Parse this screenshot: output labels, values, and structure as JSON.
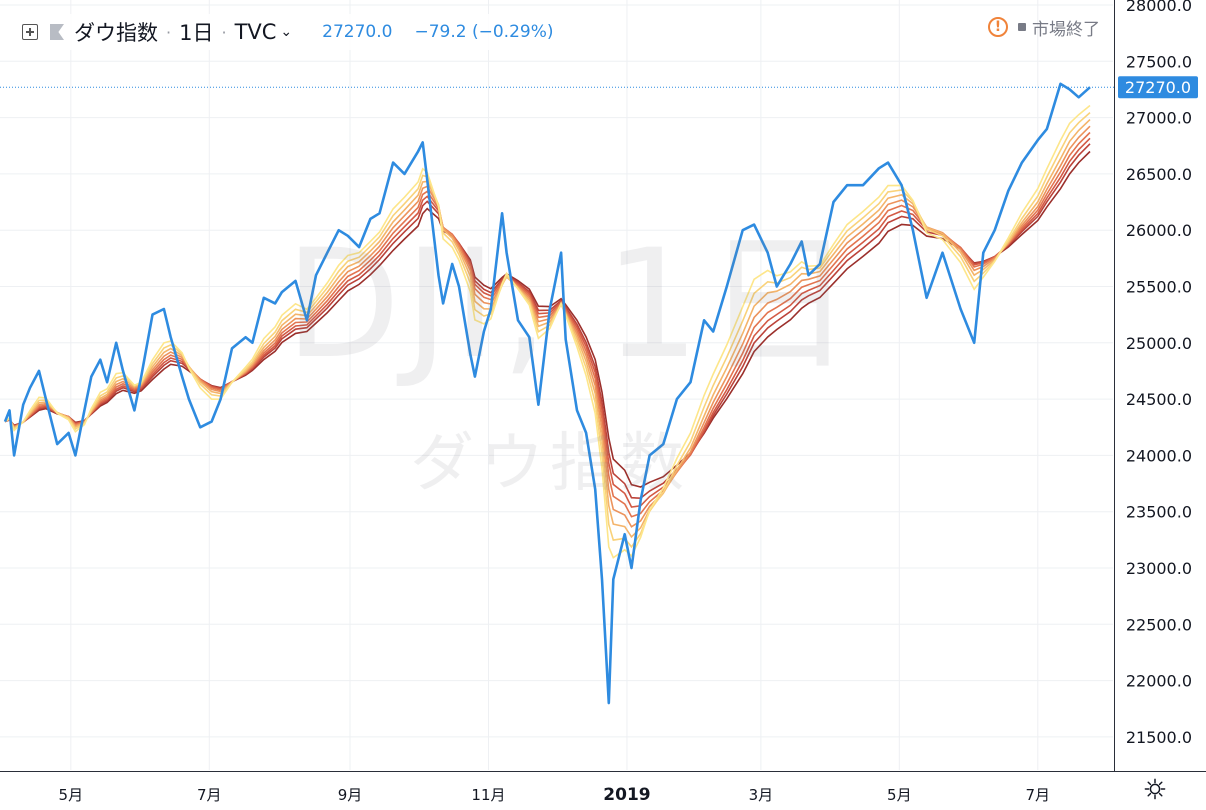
{
  "header": {
    "symbol": "ダウ指数",
    "interval": "1日",
    "exchange": "TVC",
    "price": "27270.0",
    "change": "−79.2 (−0.29%)",
    "status_icon": "warning-icon",
    "status_text": "市場終了",
    "colors": {
      "accent": "#2e8be0",
      "warning": "#f0833a"
    }
  },
  "watermark": {
    "symbol": "DJI, 1日",
    "name": "ダウ指数"
  },
  "price_scale": {
    "labels": [
      "28000.0",
      "27500.0",
      "27000.0",
      "26500.0",
      "26000.0",
      "25500.0",
      "25000.0",
      "24500.0",
      "24000.0",
      "23500.0",
      "23000.0",
      "22500.0",
      "22000.0",
      "21500.0"
    ],
    "last_price_label": "27270.0"
  },
  "time_scale": {
    "labels": [
      "5月",
      "7月",
      "9月",
      "11月",
      "2019",
      "3月",
      "5月",
      "7月"
    ]
  },
  "settings_icon": "gear-icon",
  "chart_data": {
    "type": "line",
    "title": "",
    "xlabel": "",
    "ylabel": "",
    "ylim": [
      21500,
      28000
    ],
    "grid": true,
    "x": [
      "2018-04-02",
      "2018-04-04",
      "2018-04-06",
      "2018-04-10",
      "2018-04-13",
      "2018-04-17",
      "2018-04-20",
      "2018-04-25",
      "2018-04-30",
      "2018-05-03",
      "2018-05-07",
      "2018-05-10",
      "2018-05-14",
      "2018-05-17",
      "2018-05-21",
      "2018-05-24",
      "2018-05-29",
      "2018-06-01",
      "2018-06-06",
      "2018-06-11",
      "2018-06-14",
      "2018-06-19",
      "2018-06-22",
      "2018-06-27",
      "2018-07-02",
      "2018-07-06",
      "2018-07-11",
      "2018-07-17",
      "2018-07-20",
      "2018-07-25",
      "2018-07-30",
      "2018-08-02",
      "2018-08-08",
      "2018-08-13",
      "2018-08-17",
      "2018-08-22",
      "2018-08-27",
      "2018-08-31",
      "2018-09-05",
      "2018-09-10",
      "2018-09-14",
      "2018-09-20",
      "2018-09-25",
      "2018-10-01",
      "2018-10-03",
      "2018-10-05",
      "2018-10-10",
      "2018-10-12",
      "2018-10-16",
      "2018-10-19",
      "2018-10-24",
      "2018-10-26",
      "2018-10-30",
      "2018-11-02",
      "2018-11-07",
      "2018-11-09",
      "2018-11-14",
      "2018-11-19",
      "2018-11-23",
      "2018-11-28",
      "2018-12-03",
      "2018-12-05",
      "2018-12-10",
      "2018-12-14",
      "2018-12-18",
      "2018-12-21",
      "2018-12-24",
      "2018-12-26",
      "2018-12-31",
      "2019-01-03",
      "2019-01-07",
      "2019-01-11",
      "2019-01-17",
      "2019-01-23",
      "2019-01-29",
      "2019-02-04",
      "2019-02-08",
      "2019-02-14",
      "2019-02-21",
      "2019-02-26",
      "2019-03-04",
      "2019-03-08",
      "2019-03-14",
      "2019-03-19",
      "2019-03-22",
      "2019-03-27",
      "2019-04-02",
      "2019-04-08",
      "2019-04-15",
      "2019-04-22",
      "2019-04-26",
      "2019-05-02",
      "2019-05-07",
      "2019-05-13",
      "2019-05-20",
      "2019-05-28",
      "2019-06-03",
      "2019-06-07",
      "2019-06-12",
      "2019-06-18",
      "2019-06-24",
      "2019-07-01",
      "2019-07-05",
      "2019-07-11",
      "2019-07-15",
      "2019-07-19",
      "2019-07-24"
    ],
    "series": [
      {
        "values": [
          24300,
          24400,
          24000,
          24450,
          24600,
          24750,
          24500,
          24100,
          24200,
          24000,
          24400,
          24700,
          24850,
          24650,
          25000,
          24750,
          24400,
          24700,
          25250,
          25300,
          25050,
          24700,
          24500,
          24250,
          24300,
          24500,
          24950,
          25050,
          25000,
          25400,
          25350,
          25450,
          25550,
          25200,
          25600,
          25800,
          26000,
          25950,
          25850,
          26100,
          26150,
          26600,
          26500,
          26700,
          26780,
          26450,
          25600,
          25350,
          25700,
          25500,
          24900,
          24700,
          25100,
          25300,
          26150,
          25800,
          25200,
          25050,
          24450,
          25300,
          25800,
          25030,
          24400,
          24200,
          23700,
          22900,
          21800,
          22900,
          23300,
          23000,
          23600,
          24000,
          24100,
          24500,
          24650,
          25200,
          25100,
          25500,
          26000,
          26050,
          25800,
          25500,
          25700,
          25900,
          25600,
          25700,
          26250,
          26400,
          26400,
          26550,
          26600,
          26400,
          26000,
          25400,
          25800,
          25300,
          25000,
          25800,
          26000,
          26350,
          26600,
          26800,
          26900,
          27300,
          27250,
          27180,
          27270
        ]
      }
    ],
    "moving_average_ribbon": {
      "count": 8,
      "colors": [
        "#fde68a",
        "#f9d27a",
        "#f4b46a",
        "#ec935c",
        "#e3744f",
        "#d35a45",
        "#bc433a",
        "#9b2f2b"
      ],
      "last_values": [
        27000,
        26900,
        26820,
        26750,
        26680,
        26620,
        26560,
        26500
      ]
    }
  }
}
